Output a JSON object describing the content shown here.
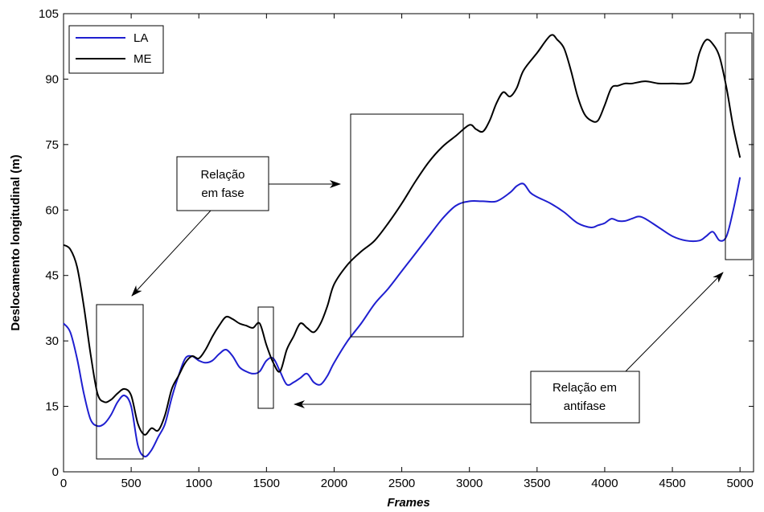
{
  "chart_data": {
    "type": "line",
    "xlabel": "Frames",
    "ylabel": "Deslocamento longitudinal (m)",
    "xlim": [
      0,
      5100
    ],
    "ylim": [
      0,
      105
    ],
    "xticks": [
      "0",
      "500",
      "1000",
      "1500",
      "2000",
      "2500",
      "3000",
      "3500",
      "4000",
      "4500",
      "5000"
    ],
    "yticks": [
      "0",
      "15",
      "30",
      "45",
      "60",
      "75",
      "90",
      "105"
    ],
    "legend_position": "top-left",
    "series": [
      {
        "name": "LA",
        "color": "#1f1fd0",
        "x": [
          0,
          50,
          100,
          150,
          200,
          250,
          300,
          350,
          400,
          450,
          500,
          550,
          600,
          650,
          700,
          750,
          800,
          850,
          900,
          950,
          1000,
          1050,
          1100,
          1150,
          1200,
          1250,
          1300,
          1350,
          1400,
          1450,
          1500,
          1550,
          1600,
          1650,
          1700,
          1750,
          1800,
          1850,
          1900,
          1950,
          2000,
          2100,
          2200,
          2300,
          2400,
          2500,
          2600,
          2700,
          2800,
          2900,
          3000,
          3100,
          3200,
          3300,
          3350,
          3400,
          3450,
          3500,
          3600,
          3700,
          3800,
          3900,
          3950,
          4000,
          4050,
          4100,
          4150,
          4200,
          4250,
          4300,
          4400,
          4500,
          4600,
          4700,
          4750,
          4800,
          4850,
          4900,
          4950,
          5000
        ],
        "y": [
          34,
          32,
          26,
          18,
          12,
          10.5,
          11,
          13,
          16,
          17.5,
          15,
          6,
          3.5,
          5,
          8,
          11,
          17,
          22,
          26,
          26.5,
          25.5,
          25,
          25.5,
          27,
          28,
          26.5,
          24,
          23,
          22.5,
          23,
          25.5,
          26,
          23,
          20,
          20.5,
          21.5,
          22.5,
          20.5,
          20,
          22,
          25,
          30,
          34,
          38.5,
          42,
          46,
          50,
          54,
          58,
          61,
          62,
          62,
          62,
          64,
          65.5,
          66,
          64,
          63,
          61.5,
          59.5,
          57,
          56,
          56.5,
          57,
          58,
          57.5,
          57.5,
          58,
          58.5,
          58,
          56,
          54,
          53,
          53,
          54,
          55,
          53,
          54,
          60,
          67.5
        ]
      },
      {
        "name": "ME",
        "color": "#000000",
        "x": [
          0,
          50,
          100,
          150,
          200,
          250,
          300,
          350,
          400,
          450,
          500,
          550,
          600,
          650,
          700,
          750,
          800,
          850,
          900,
          950,
          1000,
          1050,
          1100,
          1150,
          1200,
          1250,
          1300,
          1350,
          1400,
          1450,
          1500,
          1550,
          1600,
          1650,
          1700,
          1750,
          1800,
          1850,
          1900,
          1950,
          2000,
          2100,
          2200,
          2300,
          2400,
          2500,
          2600,
          2700,
          2800,
          2900,
          3000,
          3050,
          3100,
          3150,
          3200,
          3250,
          3300,
          3350,
          3400,
          3500,
          3600,
          3650,
          3700,
          3750,
          3800,
          3850,
          3900,
          3950,
          4000,
          4050,
          4100,
          4150,
          4200,
          4300,
          4400,
          4500,
          4600,
          4650,
          4700,
          4750,
          4800,
          4850,
          4900,
          4950,
          5000
        ],
        "y": [
          52,
          51,
          47,
          38,
          27,
          18,
          16,
          16.5,
          18,
          19,
          17.5,
          11,
          8.5,
          10,
          9.5,
          13,
          19,
          22,
          25,
          26.5,
          26,
          28,
          31,
          33.5,
          35.5,
          35,
          34,
          33.5,
          33,
          34,
          29,
          25,
          23,
          28,
          31,
          34,
          33,
          32,
          34,
          38,
          43,
          47.5,
          50.5,
          53,
          57,
          61.5,
          66.5,
          71,
          74.5,
          77,
          79.5,
          78.5,
          78,
          80.5,
          84.5,
          87,
          86,
          88,
          92,
          96,
          100,
          99,
          97,
          92,
          86,
          82,
          80.5,
          80.5,
          84,
          88,
          88.5,
          89,
          89,
          89.5,
          89,
          89,
          89,
          90,
          96,
          99,
          98,
          95,
          88,
          79,
          72
        ]
      }
    ],
    "annotations": {
      "fase_label": [
        "Relação",
        "em fase"
      ],
      "antifase_label": [
        "Relação em",
        "antifase"
      ]
    }
  }
}
